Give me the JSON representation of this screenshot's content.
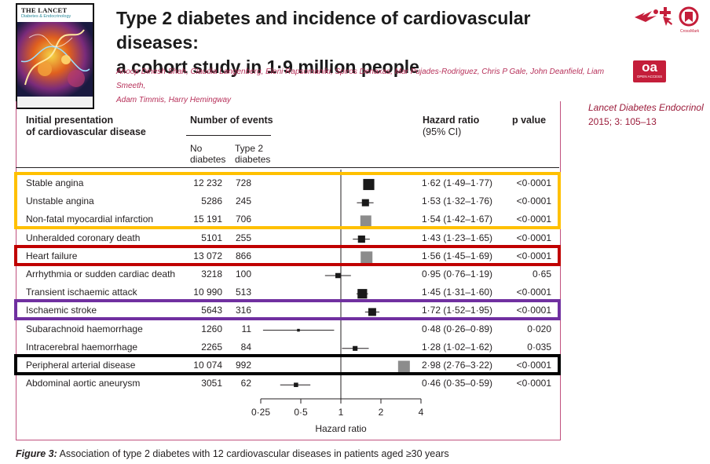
{
  "cover": {
    "masthead": "THE LANCET",
    "subtitle": "Diabetes & Endocrinology"
  },
  "article": {
    "title_line1": "Type 2 diabetes and incidence of cardiovascular diseases:",
    "title_line2": "a cohort study in 1·9 million people",
    "authors_line1": "Anoop Dinesh Shah, Claudia Langenberg, Eleni Rapsomaniki, Spiros Denaxas, Mar Pujades-Rodriguez, Chris P Gale, John Deanfield, Liam Smeeth,",
    "authors_line2": "Adam Timmis, Harry Hemingway",
    "citation_journal": "Lancet Diabetes Endocrinol",
    "citation_ref": "2015; 3: 105–13",
    "oa_badge": "oa",
    "oa_sub": "OPEN ACCESS",
    "crossmark": "CrossMark"
  },
  "colors": {
    "accent": "#c41e3a",
    "frame": "#c0507e",
    "author": "#b7315a",
    "citation": "#9b1b3a"
  },
  "icons": [
    "bird-icon",
    "pointer-hand-icon",
    "crossmark-icon"
  ],
  "table_headers": {
    "presentation_line1": "Initial presentation",
    "presentation_line2": "of cardiovascular disease",
    "events": "Number of events",
    "no_diabetes_line1": "No",
    "no_diabetes_line2": "diabetes",
    "type2_line1": "Type 2",
    "type2_line2": "diabetes",
    "hr_line1": "Hazard ratio",
    "hr_line2": "(95% CI)",
    "pvalue": "p value"
  },
  "chart_data": {
    "type": "forest",
    "xlabel": "Hazard ratio",
    "xscale": "log",
    "xticks": [
      "0·25",
      "0·5",
      "1",
      "2",
      "4"
    ],
    "xtick_values": [
      0.25,
      0.5,
      1,
      2,
      4
    ],
    "xlim": [
      0.25,
      4
    ],
    "reference_line": 1,
    "rows": [
      {
        "label": "Stable angina",
        "no_diabetes": "12 232",
        "type2": "728",
        "hr": 1.62,
        "lo": 1.49,
        "hi": 1.77,
        "hr_text": "1·62 (1·49–1·77)",
        "p": "<0·0001",
        "marker_color": "#1a1a1a"
      },
      {
        "label": "Unstable angina",
        "no_diabetes": "5286",
        "type2": "245",
        "hr": 1.53,
        "lo": 1.32,
        "hi": 1.76,
        "hr_text": "1·53 (1·32–1·76)",
        "p": "<0·0001",
        "marker_color": "#1a1a1a"
      },
      {
        "label": "Non-fatal myocardial infarction",
        "no_diabetes": "15 191",
        "type2": "706",
        "hr": 1.54,
        "lo": 1.42,
        "hi": 1.67,
        "hr_text": "1·54 (1·42–1·67)",
        "p": "<0·0001",
        "marker_color": "#8c8c8c"
      },
      {
        "label": "Unheralded coronary death",
        "no_diabetes": "5101",
        "type2": "255",
        "hr": 1.43,
        "lo": 1.23,
        "hi": 1.65,
        "hr_text": "1·43 (1·23–1·65)",
        "p": "<0·0001",
        "marker_color": "#1a1a1a"
      },
      {
        "label": "Heart failure",
        "no_diabetes": "13 072",
        "type2": "866",
        "hr": 1.56,
        "lo": 1.45,
        "hi": 1.69,
        "hr_text": "1·56 (1·45–1·69)",
        "p": "<0·0001",
        "marker_color": "#8c8c8c"
      },
      {
        "label": "Arrhythmia or sudden cardiac death",
        "no_diabetes": "3218",
        "type2": "100",
        "hr": 0.95,
        "lo": 0.76,
        "hi": 1.19,
        "hr_text": "0·95 (0·76–1·19)",
        "p": "0·65",
        "marker_color": "#1a1a1a"
      },
      {
        "label": "Transient ischaemic attack",
        "no_diabetes": "10 990",
        "type2": "513",
        "hr": 1.45,
        "lo": 1.31,
        "hi": 1.6,
        "hr_text": "1·45 (1·31–1·60)",
        "p": "<0·0001",
        "marker_color": "#1a1a1a"
      },
      {
        "label": "Ischaemic stroke",
        "no_diabetes": "5643",
        "type2": "316",
        "hr": 1.72,
        "lo": 1.52,
        "hi": 1.95,
        "hr_text": "1·72 (1·52–1·95)",
        "p": "<0·0001",
        "marker_color": "#1a1a1a"
      },
      {
        "label": "Subarachnoid haemorrhage",
        "no_diabetes": "1260",
        "type2": "11",
        "hr": 0.48,
        "lo": 0.26,
        "hi": 0.89,
        "hr_text": "0·48 (0·26–0·89)",
        "p": "0·020",
        "marker_color": "#1a1a1a"
      },
      {
        "label": "Intracerebral haemorrhage",
        "no_diabetes": "2265",
        "type2": "84",
        "hr": 1.28,
        "lo": 1.02,
        "hi": 1.62,
        "hr_text": "1·28 (1·02–1·62)",
        "p": "0·035",
        "marker_color": "#1a1a1a"
      },
      {
        "label": "Peripheral arterial disease",
        "no_diabetes": "10 074",
        "type2": "992",
        "hr": 2.98,
        "lo": 2.76,
        "hi": 3.22,
        "hr_text": "2·98 (2·76–3·22)",
        "p": "<0·0001",
        "marker_color": "#8c8c8c"
      },
      {
        "label": "Abdominal aortic aneurysm",
        "no_diabetes": "3051",
        "type2": "62",
        "hr": 0.46,
        "lo": 0.35,
        "hi": 0.59,
        "hr_text": "0·46 (0·35–0·59)",
        "p": "<0·0001",
        "marker_color": "#1a1a1a"
      }
    ]
  },
  "highlights": [
    {
      "name": "highlight-coronary",
      "rows": [
        0,
        2
      ],
      "color": "#ffc000"
    },
    {
      "name": "highlight-heart-failure",
      "rows": [
        4,
        4
      ],
      "color": "#c00000"
    },
    {
      "name": "highlight-ischaemic-stroke",
      "rows": [
        7,
        7
      ],
      "color": "#7030a0"
    },
    {
      "name": "highlight-peripheral",
      "rows": [
        10,
        10
      ],
      "color": "#000000"
    }
  ],
  "caption": {
    "lead": "Figure 3:",
    "text": " Association of type 2 diabetes with 12 cardiovascular diseases in patients aged ≥30 years"
  }
}
